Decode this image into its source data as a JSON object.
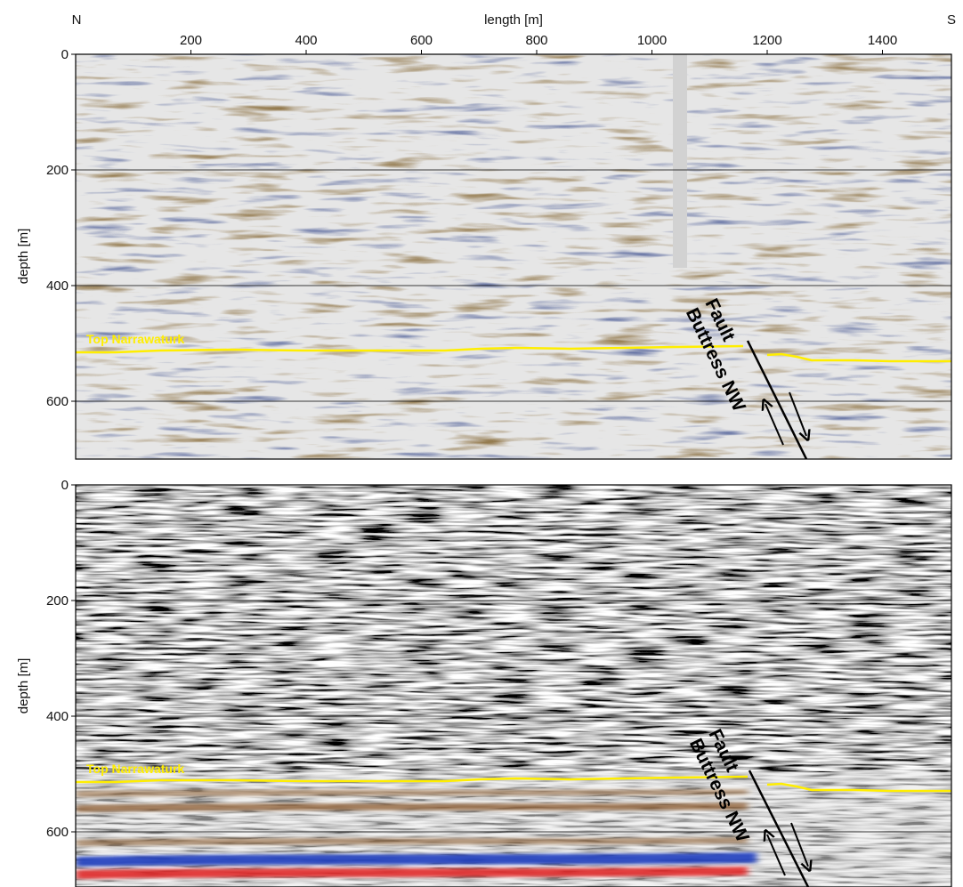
{
  "figure": {
    "x_axis": {
      "title": "length [m]",
      "left_end_label": "N",
      "right_end_label": "S",
      "ticks": [
        "200",
        "400",
        "600",
        "800",
        "1000",
        "1200",
        "1400"
      ]
    },
    "panels": [
      {
        "y_axis": {
          "title": "depth [m]",
          "ticks": [
            "0",
            "200",
            "400",
            "600"
          ]
        },
        "horizon_label": "Top Narrawaturk",
        "fault_label_1": "Fault",
        "fault_label_2": "Buttress NW",
        "gap_trace": true
      },
      {
        "y_axis": {
          "title": "depth [m]",
          "ticks": [
            "0",
            "200",
            "400",
            "600"
          ]
        },
        "horizon_label": "Top Narrawaturk",
        "fault_label_1": "Fault",
        "fault_label_2": "Buttress NW",
        "gap_trace": false
      }
    ],
    "colors": {
      "horizon": "#ffee00",
      "positive_amplitude": "#8b5a2b",
      "strong_positive": "#e02020",
      "negative_amplitude": "#1f3fbf",
      "background": "#e6e6e6",
      "gridline": "#000000"
    }
  }
}
